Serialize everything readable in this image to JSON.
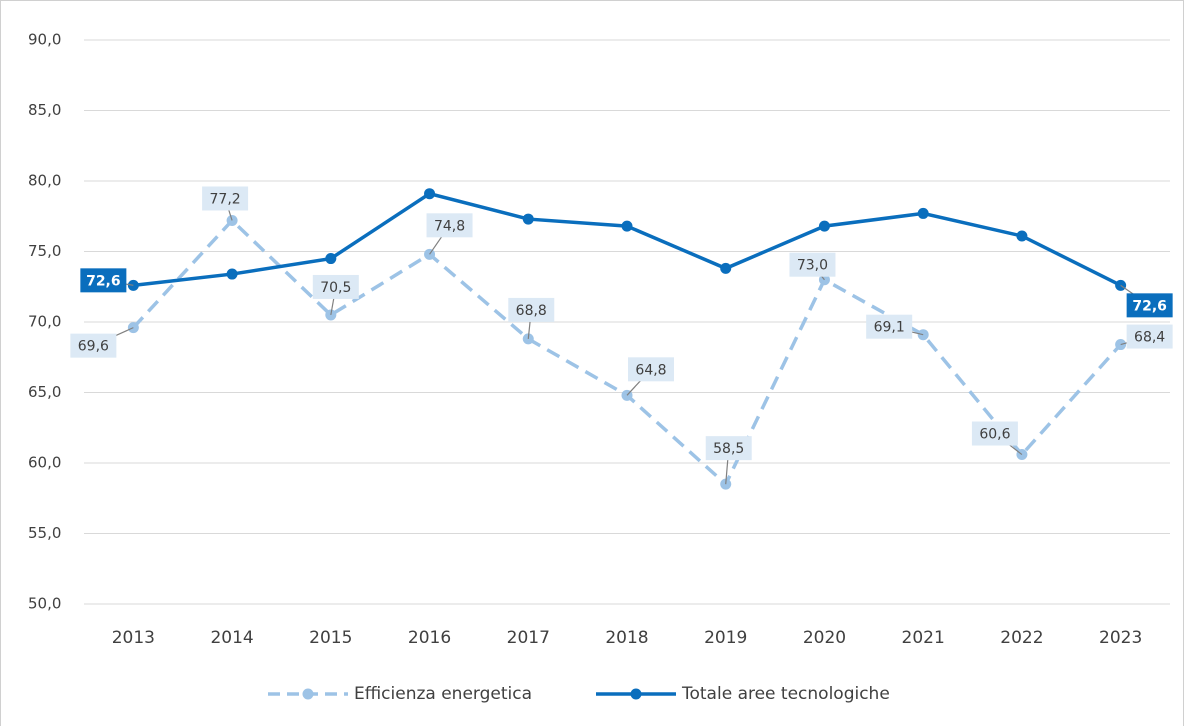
{
  "chart_data": {
    "type": "line",
    "categories": [
      "2013",
      "2014",
      "2015",
      "2016",
      "2017",
      "2018",
      "2019",
      "2020",
      "2021",
      "2022",
      "2023"
    ],
    "ylim": [
      50,
      90
    ],
    "yticks": [
      {
        "value": 50,
        "label": "50,0"
      },
      {
        "value": 55,
        "label": "55,0"
      },
      {
        "value": 60,
        "label": "60,0"
      },
      {
        "value": 65,
        "label": "65,0"
      },
      {
        "value": 70,
        "label": "70,0"
      },
      {
        "value": 75,
        "label": "75,0"
      },
      {
        "value": 80,
        "label": "80,0"
      },
      {
        "value": 85,
        "label": "85,0"
      },
      {
        "value": 90,
        "label": "90,0"
      }
    ],
    "grid": true,
    "legend": "bottom",
    "series": [
      {
        "name": "Efficienza energetica",
        "color": "#9dc3e6",
        "dash": true,
        "values": [
          69.6,
          77.2,
          70.5,
          74.8,
          68.8,
          64.8,
          58.5,
          73.0,
          69.1,
          60.6,
          68.4
        ],
        "value_labels": [
          "69,6",
          "77,2",
          "70,5",
          "74,8",
          "68,8",
          "64,8",
          "58,5",
          "73,0",
          "69,1",
          "60,6",
          "68,4"
        ]
      },
      {
        "name": "Totale aree tecnologiche",
        "color": "#0a6ebd",
        "dash": false,
        "values": [
          72.6,
          73.4,
          74.5,
          79.1,
          77.3,
          76.8,
          73.8,
          76.8,
          77.7,
          76.1,
          72.6
        ],
        "value_labels": [
          "72,6",
          null,
          null,
          null,
          null,
          null,
          null,
          null,
          null,
          null,
          "72,6"
        ]
      }
    ]
  }
}
